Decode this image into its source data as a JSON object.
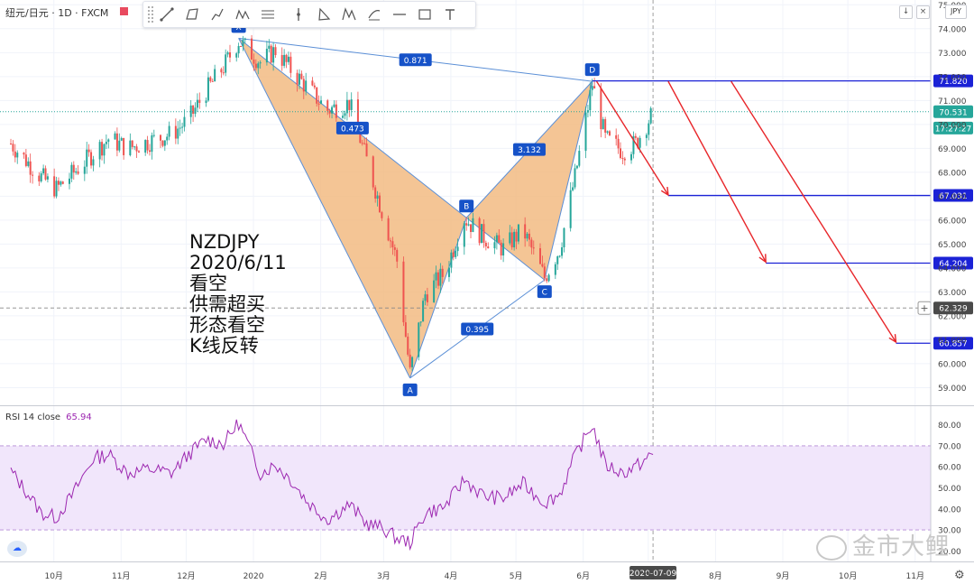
{
  "header": {
    "symbol": "纽元/日元 · 1D · FXCM"
  },
  "toolbar": {
    "tools": [
      "trend-line-icon",
      "box-icon",
      "path-icon",
      "pattern-icon",
      "horizontal-lines-icon",
      "vertical-line-icon",
      "triangle-icon",
      "xabcd-icon",
      "fib-icon",
      "line-icon",
      "rectangle-icon",
      "text-icon"
    ]
  },
  "currency_button": "JPY",
  "annotation": "NZDJPY\n2020/6/11\n看空\n供需超买\n形态看空\nK线反转",
  "rsi": {
    "label": "RSI 14 close",
    "value": "65.94"
  },
  "watermark": "金市大鲤",
  "chart_data": [
    {
      "type": "candlestick",
      "symbol": "NZDJPY",
      "timeframe": "1D",
      "ylim": [
        58.3,
        75.2
      ],
      "y_ticks": [
        "59.000",
        "60.000",
        "61.000",
        "62.000",
        "63.000",
        "64.000",
        "65.000",
        "66.000",
        "67.000",
        "68.000",
        "69.000",
        "70.000",
        "71.000",
        "72.000",
        "73.000",
        "74.000",
        "75.000"
      ],
      "x_ticks": [
        "10月",
        "11月",
        "12月",
        "2020",
        "2月",
        "3月",
        "4月",
        "5月",
        "6月",
        "7月",
        "8月",
        "9月",
        "10月",
        "11月"
      ],
      "current_date": "2020-07-09",
      "close_path": [
        [
          "2019-09-17",
          69.2
        ],
        [
          "2019-09-25",
          68.4
        ],
        [
          "2019-10-01",
          67.8
        ],
        [
          "2019-10-08",
          67.3
        ],
        [
          "2019-10-15",
          67.9
        ],
        [
          "2019-10-25",
          68.8
        ],
        [
          "2019-11-01",
          69.4
        ],
        [
          "2019-11-10",
          69.0
        ],
        [
          "2019-11-20",
          69.3
        ],
        [
          "2019-11-30",
          69.6
        ],
        [
          "2019-12-08",
          70.2
        ],
        [
          "2019-12-16",
          71.4
        ],
        [
          "2019-12-24",
          72.4
        ],
        [
          "2019-12-31",
          73.5
        ],
        [
          "2020-01-10",
          72.6
        ],
        [
          "2020-01-17",
          73.1
        ],
        [
          "2020-01-24",
          72.3
        ],
        [
          "2020-02-01",
          71.5
        ],
        [
          "2020-02-10",
          70.6
        ],
        [
          "2020-02-20",
          70.9
        ],
        [
          "2020-02-28",
          68.5
        ],
        [
          "2020-03-06",
          66.4
        ],
        [
          "2020-03-13",
          64.3
        ],
        [
          "2020-03-19",
          59.6
        ],
        [
          "2020-03-26",
          62.9
        ],
        [
          "2020-04-04",
          63.8
        ],
        [
          "2020-04-13",
          66.1
        ],
        [
          "2020-04-22",
          65.3
        ],
        [
          "2020-05-01",
          64.8
        ],
        [
          "2020-05-10",
          65.6
        ],
        [
          "2020-05-20",
          63.6
        ],
        [
          "2020-05-27",
          64.8
        ],
        [
          "2020-06-03",
          67.8
        ],
        [
          "2020-06-11",
          71.7
        ],
        [
          "2020-06-17",
          69.4
        ],
        [
          "2020-06-25",
          68.9
        ],
        [
          "2020-07-01",
          69.2
        ],
        [
          "2020-07-09",
          70.5
        ]
      ],
      "harmonic_pattern": {
        "points": [
          {
            "label": "X",
            "date": "2019-12-31",
            "price": 73.6
          },
          {
            "label": "A",
            "date": "2020-03-19",
            "price": 59.4
          },
          {
            "label": "B",
            "date": "2020-04-14",
            "price": 66.1
          },
          {
            "label": "C",
            "date": "2020-05-20",
            "price": 63.5
          },
          {
            "label": "D",
            "date": "2020-06-11",
            "price": 71.8
          }
        ],
        "ratios": {
          "XB": "0.473",
          "AC": "0.395",
          "BD": "3.132",
          "XD": "0.871"
        }
      },
      "horizontal_levels": [
        {
          "price": 71.82,
          "label": "71.820",
          "from_date": "2020-06-11"
        },
        {
          "price": 67.031,
          "label": "67.031",
          "from_date": "2020-07-16"
        },
        {
          "price": 64.204,
          "label": "64.204",
          "from_date": "2020-08-30"
        },
        {
          "price": 60.857,
          "label": "60.857",
          "from_date": "2020-10-29"
        }
      ],
      "projection_arrows": [
        {
          "from": [
            "2020-06-13",
            71.8
          ],
          "to": [
            "2020-07-16",
            67.05
          ]
        },
        {
          "from": [
            "2020-07-16",
            71.8
          ],
          "to": [
            "2020-08-30",
            64.25
          ]
        },
        {
          "from": [
            "2020-08-14",
            71.8
          ],
          "to": [
            "2020-10-29",
            60.9
          ]
        }
      ],
      "price_labels": [
        {
          "text": "70.531",
          "price": 70.531,
          "color": "#26a69a"
        },
        {
          "text": "17:27:27",
          "price": 69.85,
          "color": "#26a69a"
        },
        {
          "text": "62.329",
          "price": 62.329,
          "color": "#4a4a4a"
        }
      ],
      "last_price": 70.531,
      "crosshair_price": 62.329
    },
    {
      "type": "line",
      "title": "RSI 14 close",
      "ylim": [
        15,
        88
      ],
      "y_ticks": [
        "20.00",
        "30.00",
        "40.00",
        "50.00",
        "60.00",
        "70.00",
        "80.00"
      ],
      "band": [
        30,
        70
      ],
      "color": "#9c27b0",
      "band_color": "#f1e6fb",
      "last_value": 65.94,
      "series": [
        [
          "2019-09-17",
          58
        ],
        [
          "2019-09-25",
          47
        ],
        [
          "2019-10-01",
          38
        ],
        [
          "2019-10-08",
          36
        ],
        [
          "2019-10-15",
          46
        ],
        [
          "2019-10-25",
          64
        ],
        [
          "2019-11-01",
          66
        ],
        [
          "2019-11-10",
          57
        ],
        [
          "2019-11-20",
          59
        ],
        [
          "2019-11-30",
          57
        ],
        [
          "2019-12-08",
          66
        ],
        [
          "2019-12-16",
          73
        ],
        [
          "2019-12-24",
          71
        ],
        [
          "2019-12-31",
          81
        ],
        [
          "2020-01-10",
          57
        ],
        [
          "2020-01-17",
          61
        ],
        [
          "2020-01-24",
          54
        ],
        [
          "2020-02-01",
          43
        ],
        [
          "2020-02-10",
          35
        ],
        [
          "2020-02-20",
          42
        ],
        [
          "2020-02-28",
          33
        ],
        [
          "2020-03-06",
          31
        ],
        [
          "2020-03-13",
          26
        ],
        [
          "2020-03-19",
          24
        ],
        [
          "2020-03-26",
          38
        ],
        [
          "2020-04-04",
          41
        ],
        [
          "2020-04-13",
          54
        ],
        [
          "2020-04-22",
          46
        ],
        [
          "2020-05-01",
          45
        ],
        [
          "2020-05-10",
          52
        ],
        [
          "2020-05-20",
          43
        ],
        [
          "2020-05-27",
          47
        ],
        [
          "2020-06-03",
          65
        ],
        [
          "2020-06-11",
          80
        ],
        [
          "2020-06-17",
          61
        ],
        [
          "2020-06-25",
          57
        ],
        [
          "2020-07-01",
          60
        ],
        [
          "2020-07-09",
          65.9
        ]
      ]
    }
  ]
}
